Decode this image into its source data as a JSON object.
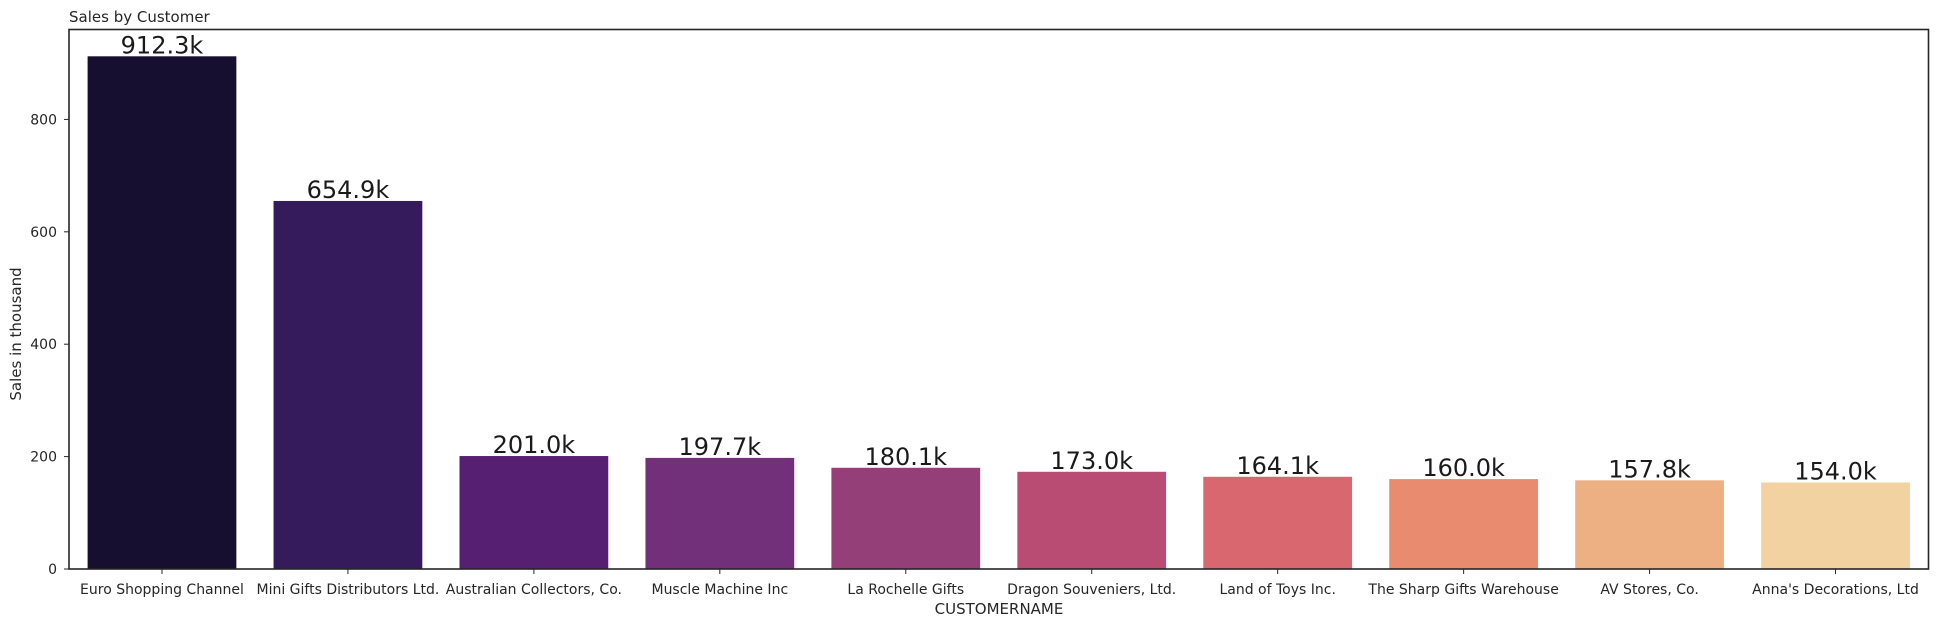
{
  "chart_data": {
    "type": "bar",
    "title": "Sales by Customer",
    "xlabel": "CUSTOMERNAME",
    "ylabel": "Sales in thousand",
    "ylim": [
      0,
      960
    ],
    "yticks": [
      0,
      200,
      400,
      600,
      800
    ],
    "grid": false,
    "categories": [
      "Euro Shopping Channel",
      "Mini Gifts Distributors Ltd.",
      "Australian Collectors, Co.",
      "Muscle Machine Inc",
      "La Rochelle Gifts",
      "Dragon Souveniers, Ltd.",
      "Land of Toys Inc.",
      "The Sharp Gifts Warehouse",
      "AV Stores, Co.",
      "Anna's Decorations, Ltd"
    ],
    "values": [
      912.3,
      654.9,
      201.0,
      197.7,
      180.1,
      173.0,
      164.1,
      160.0,
      157.8,
      154.0
    ],
    "data_labels": [
      "912.3k",
      "654.9k",
      "201.0k",
      "197.7k",
      "180.1k",
      "173.0k",
      "164.1k",
      "160.0k",
      "157.8k",
      "154.0k"
    ],
    "colors": [
      "#160f30",
      "#351a5c",
      "#561f72",
      "#73307a",
      "#943f78",
      "#b94c73",
      "#d8676f",
      "#e88b6e",
      "#edb083",
      "#f3d2a2"
    ]
  }
}
